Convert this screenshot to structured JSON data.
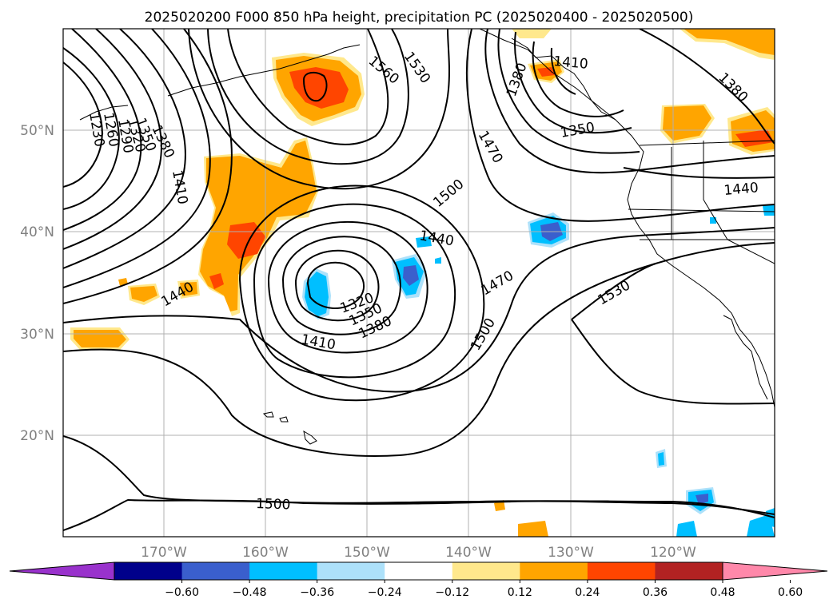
{
  "title": "2025020200 F000 850 hPa height, precipitation PC (2025020400 - 2025020500)",
  "map": {
    "lat_labels": [
      "50°N",
      "40°N",
      "30°N",
      "20°N"
    ],
    "lon_labels": [
      "170°W",
      "160°W",
      "150°W",
      "140°W",
      "130°W",
      "120°W"
    ],
    "grid": true,
    "contour_color": "#000000"
  },
  "contour_labels": [
    {
      "text": "1560"
    },
    {
      "text": "1530"
    },
    {
      "text": "1410"
    },
    {
      "text": "1380"
    },
    {
      "text": "1350"
    },
    {
      "text": "1470"
    },
    {
      "text": "1500"
    },
    {
      "text": "1440"
    },
    {
      "text": "1380"
    },
    {
      "text": "1410"
    },
    {
      "text": "1440"
    },
    {
      "text": "1320"
    },
    {
      "text": "1350"
    },
    {
      "text": "1380"
    },
    {
      "text": "1410"
    },
    {
      "text": "1470"
    },
    {
      "text": "1500"
    },
    {
      "text": "1530"
    },
    {
      "text": "1500"
    },
    {
      "text": "1440"
    },
    {
      "text": "1230"
    },
    {
      "text": "1260"
    },
    {
      "text": "1290"
    },
    {
      "text": "1320"
    },
    {
      "text": "1350"
    },
    {
      "text": "1380"
    },
    {
      "text": "1410"
    }
  ],
  "colorbar": {
    "ticks": [
      "−0.60",
      "−0.48",
      "−0.36",
      "−0.24",
      "−0.12",
      "0.12",
      "0.24",
      "0.36",
      "0.48",
      "0.60"
    ],
    "colors": [
      "#9932CC",
      "#00008B",
      "#3A5FCD",
      "#00BFFF",
      "#ADE1FA",
      "#FFFFFF",
      "#FFE88C",
      "#FFA500",
      "#FF4500",
      "#B22222",
      "#FF88AA"
    ]
  }
}
